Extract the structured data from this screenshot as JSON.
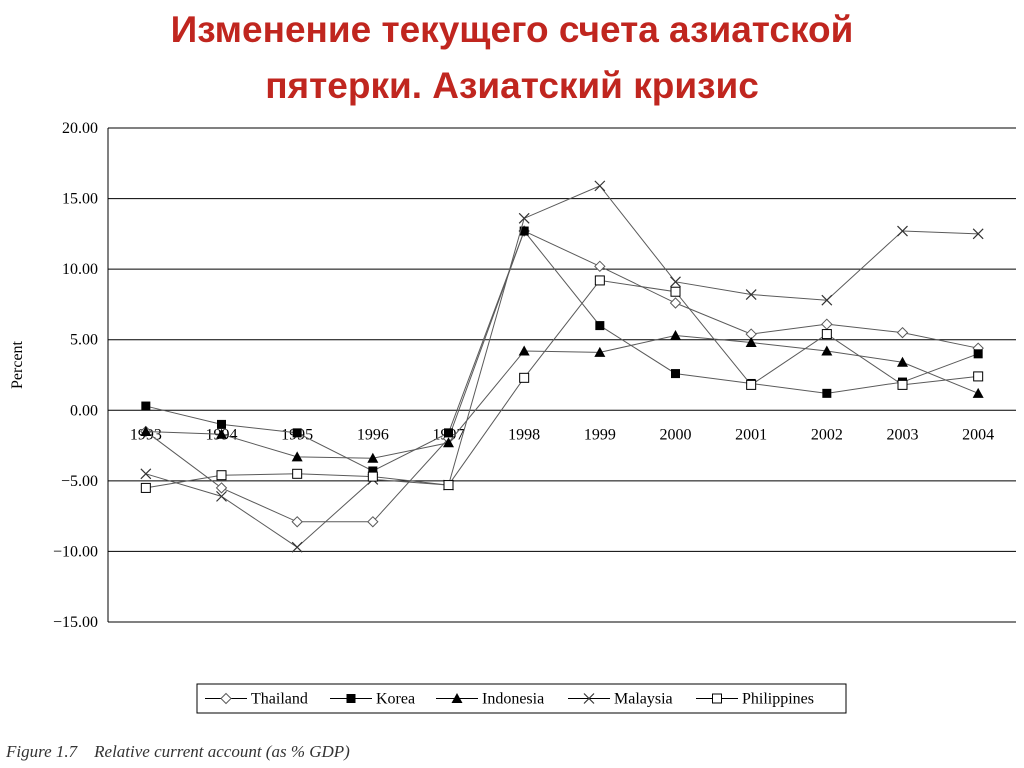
{
  "slide": {
    "title_line1": "Изменение текущего счета  азиатской",
    "title_line2": "пятерки. Азиатский кризис"
  },
  "caption": {
    "figure": "Figure 1.7",
    "text": "Relative current account (as % GDP)"
  },
  "colors": {
    "title": "#c0261f",
    "series_line": "#5a5a5a",
    "grid": "#000000"
  },
  "chart_data": {
    "type": "line",
    "title": "",
    "xlabel": "",
    "ylabel": "Percent",
    "ylim": [
      -15,
      20
    ],
    "y_ticks": [
      20,
      15,
      10,
      5,
      0,
      -5,
      -10,
      -15
    ],
    "y_tick_labels": [
      "20.00",
      "15.00",
      "10.00",
      "5.00",
      "0.00",
      "−5.00",
      "−10.00",
      "−15.00"
    ],
    "categories": [
      "1993",
      "1994",
      "1995",
      "1996",
      "1997",
      "1998",
      "1999",
      "2000",
      "2001",
      "2002",
      "2003",
      "2004"
    ],
    "grid": "horizontal",
    "legend_position": "bottom",
    "series": [
      {
        "name": "Thailand",
        "marker": "diamond",
        "values": [
          -1.5,
          -5.5,
          -7.9,
          -7.9,
          -2.0,
          12.7,
          10.2,
          7.6,
          5.4,
          6.1,
          5.5,
          4.4
        ]
      },
      {
        "name": "Korea",
        "marker": "filled-square",
        "values": [
          0.3,
          -1.0,
          -1.6,
          -4.3,
          -1.6,
          12.7,
          6.0,
          2.6,
          1.9,
          1.2,
          2.0,
          4.0
        ]
      },
      {
        "name": "Indonesia",
        "marker": "filled-triangle",
        "values": [
          -1.5,
          -1.7,
          -3.3,
          -3.4,
          -2.3,
          4.2,
          4.1,
          5.3,
          4.8,
          4.2,
          3.4,
          1.2
        ]
      },
      {
        "name": "Malaysia",
        "marker": "x",
        "values": [
          -4.5,
          -6.1,
          -9.7,
          -4.9,
          -5.3,
          13.6,
          15.9,
          9.1,
          8.2,
          7.8,
          12.7,
          12.5
        ]
      },
      {
        "name": "Philippines",
        "marker": "square",
        "values": [
          -5.5,
          -4.6,
          -4.5,
          -4.7,
          -5.3,
          2.3,
          9.2,
          8.4,
          1.8,
          5.4,
          1.8,
          2.4
        ]
      }
    ]
  }
}
